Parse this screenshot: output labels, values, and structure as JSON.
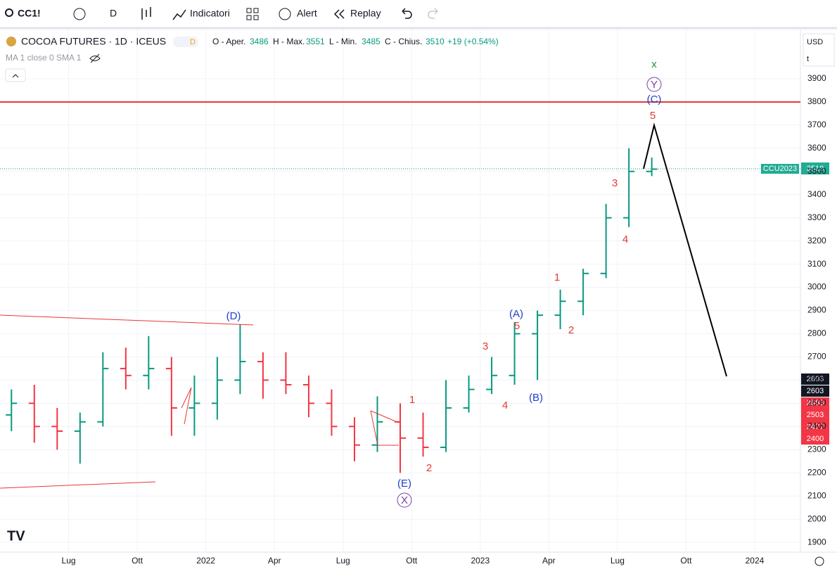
{
  "toolbar": {
    "symbol": "CC1!",
    "interval": "D",
    "indicators": "Indicatori",
    "alert": "Alert",
    "replay": "Replay"
  },
  "legend": {
    "title": "COCOA FUTURES · 1D · ICEUS",
    "badge": "D",
    "open_label": "O - Aper.",
    "open": 3486,
    "high_label": "H - Max.",
    "high": 3551,
    "low_label": "L - Min.",
    "low": 3485,
    "close_label": "C - Chius.",
    "close": 3510,
    "change": "+19 (+0.54%)",
    "ma": "MA 1 close 0 SMA 1"
  },
  "axis_controls": {
    "currency": "USD",
    "unit": "t"
  },
  "price_labels": [
    {
      "label": "CCU2023",
      "value": 3510
    },
    {
      "value": 2603
    },
    {
      "value": 2603
    },
    {
      "value": 2563
    },
    {
      "value": 2503
    },
    {
      "value": 2477
    },
    {
      "value": 2400
    }
  ],
  "annotations": [
    "(D)",
    "1",
    "2",
    "(E)",
    "X",
    "3",
    "4",
    "(A)",
    "5",
    "(B)",
    "1",
    "2",
    "3",
    "4",
    "5",
    "(C)",
    "Y",
    "x"
  ],
  "chart_data": {
    "type": "ohlc",
    "x": [
      "2021-04",
      "2021-05",
      "2021-06",
      "2021-07",
      "2021-08",
      "2021-09",
      "2021-10",
      "2021-11",
      "2021-12",
      "2022-01",
      "2022-02",
      "2022-03",
      "2022-04",
      "2022-05",
      "2022-06",
      "2022-07",
      "2022-08",
      "2022-09",
      "2022-10",
      "2022-11",
      "2022-12",
      "2023-01",
      "2023-02",
      "2023-03",
      "2023-04",
      "2023-05",
      "2023-06",
      "2023-07",
      "2023-08"
    ],
    "open": [
      2450,
      2500,
      2400,
      2380,
      2420,
      2650,
      2620,
      2650,
      2480,
      2500,
      2600,
      2680,
      2600,
      2580,
      2500,
      2400,
      2320,
      2420,
      2350,
      2310,
      2480,
      2560,
      2620,
      2800,
      2880,
      2940,
      3060,
      3300,
      3500
    ],
    "high": [
      2560,
      2580,
      2480,
      2460,
      2720,
      2740,
      2790,
      2700,
      2620,
      2700,
      2840,
      2720,
      2720,
      2620,
      2560,
      2440,
      2530,
      2500,
      2460,
      2600,
      2620,
      2700,
      2850,
      2900,
      2990,
      3080,
      3360,
      3600,
      3560
    ],
    "low": [
      2380,
      2330,
      2300,
      2240,
      2400,
      2560,
      2560,
      2360,
      2360,
      2430,
      2540,
      2520,
      2540,
      2440,
      2360,
      2250,
      2290,
      2200,
      2270,
      2290,
      2460,
      2540,
      2580,
      2600,
      2820,
      2880,
      3040,
      3260,
      3480
    ],
    "close": [
      2500,
      2400,
      2380,
      2420,
      2650,
      2620,
      2650,
      2480,
      2500,
      2600,
      2680,
      2600,
      2580,
      2500,
      2400,
      2320,
      2420,
      2350,
      2310,
      2480,
      2560,
      2620,
      2800,
      2880,
      2940,
      3060,
      3300,
      3500,
      3510
    ],
    "up_color": "#089981",
    "down_color": "#f23645",
    "xlim": [
      "2021-04",
      "2024-03"
    ],
    "xticks": [
      {
        "value": "2021-07",
        "label": "Lug"
      },
      {
        "value": "2021-10",
        "label": "Ott"
      },
      {
        "value": "2022-01",
        "label": "2022"
      },
      {
        "value": "2022-04",
        "label": "Apr"
      },
      {
        "value": "2022-07",
        "label": "Lug"
      },
      {
        "value": "2022-10",
        "label": "Ott"
      },
      {
        "value": "2023-01",
        "label": "2023"
      },
      {
        "value": "2023-04",
        "label": "Apr"
      },
      {
        "value": "2023-07",
        "label": "Lug"
      },
      {
        "value": "2023-10",
        "label": "Ott"
      },
      {
        "value": "2024-01",
        "label": "2024"
      }
    ],
    "ylim": [
      1858,
      4112
    ],
    "yticks": [
      1900,
      2000,
      2100,
      2200,
      2300,
      2400,
      2500,
      2600,
      2700,
      2800,
      2900,
      3000,
      3100,
      3200,
      3300,
      3400,
      3500,
      3600,
      3700,
      3800,
      3900
    ],
    "grid": true
  }
}
